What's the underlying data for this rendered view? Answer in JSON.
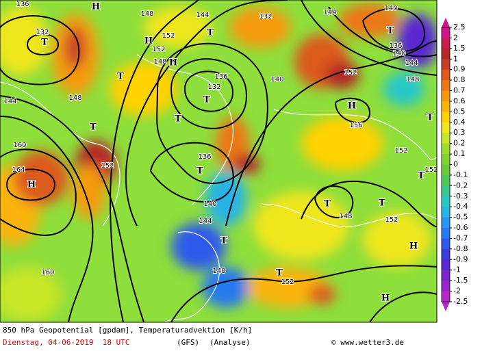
{
  "map": {
    "labels": [
      "136",
      "H",
      "148",
      "144",
      "132",
      "144",
      "140",
      "T",
      "132",
      "T",
      "T",
      "136",
      "140",
      "144",
      "H",
      "152",
      "152",
      "148",
      "H",
      "T",
      "136",
      "132",
      "T",
      "140",
      "152",
      "148",
      "144",
      "148",
      "H",
      "156",
      "T",
      "T",
      "T",
      "160",
      "152",
      "136",
      "T",
      "H",
      "164",
      "152",
      "T",
      "152",
      "140",
      "144",
      "T",
      "T",
      "148",
      "152",
      "T",
      "H",
      "160",
      "148",
      "T",
      "152",
      "H"
    ]
  },
  "colorbar": {
    "labels": [
      "2.5",
      "2",
      "1.5",
      "1",
      "0.9",
      "0.8",
      "0.7",
      "0.6",
      "0.5",
      "0.4",
      "0.3",
      "0.2",
      "0.1",
      "0",
      "-0.1",
      "-0.2",
      "-0.3",
      "-0.4",
      "-0.5",
      "-0.6",
      "-0.7",
      "-0.8",
      "-0.9",
      "-1",
      "-1.5",
      "-2",
      "-2.5"
    ],
    "colors": [
      "#d2148c",
      "#c81e50",
      "#b42828",
      "#c83c28",
      "#dc5a1e",
      "#eb7814",
      "#f59b0a",
      "#fab40a",
      "#ffd200",
      "#f0e61e",
      "#c8e628",
      "#a0dc28",
      "#82d232",
      "#6ec83c",
      "#50c85a",
      "#3cc88c",
      "#28c8c8",
      "#28b4e6",
      "#2896f0",
      "#2878f0",
      "#2d5aeb",
      "#3c3cdc",
      "#5a28d2",
      "#7828c8",
      "#9628c8",
      "#b428c8"
    ]
  },
  "footer": {
    "title": "850 hPa Geopotential [gpdam], Temperaturadvektion [K/h]",
    "date": "Dienstag, 04-06-2019  18 UTC",
    "model": "(GFS)",
    "run": "(Analyse)",
    "credit": "© www.wetter3.de"
  }
}
